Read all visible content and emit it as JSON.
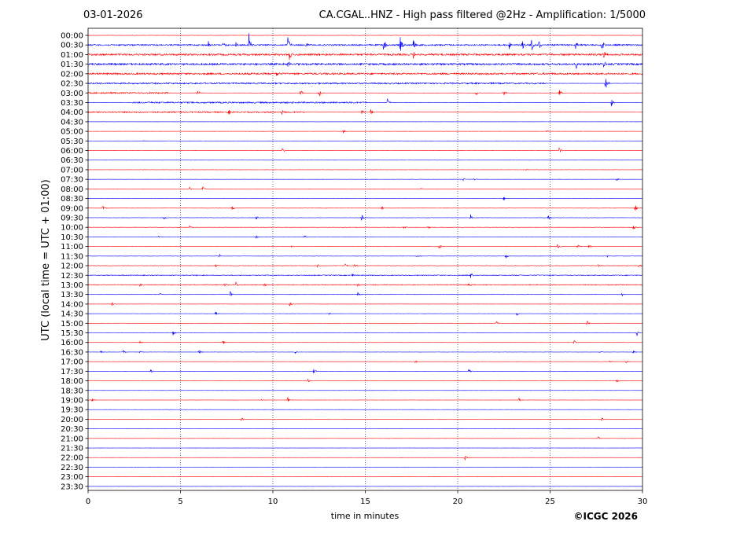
{
  "header": {
    "date": "03-01-2026",
    "title": "CA.CGAL..HNZ - High pass filtered @2Hz - Amplification: 1/5000"
  },
  "copyright": "©ICGC 2026",
  "colors": {
    "red_trace": "#ff0000",
    "blue_trace": "#0000ff",
    "grid": "#1a237e",
    "axis": "#000000"
  },
  "chart_data": {
    "type": "line",
    "title": "CA.CGAL..HNZ - High pass filtered @2Hz - Amplification: 1/5000",
    "xlabel": "time in minutes",
    "ylabel": "UTC (local time = UTC + 01:00)",
    "xlim": [
      0,
      30
    ],
    "x_ticks": [
      0,
      5,
      10,
      15,
      20,
      25,
      30
    ],
    "x_tick_labels": [
      "0",
      "5",
      "10",
      "15",
      "20",
      "25",
      "30"
    ],
    "y_tick_labels": [
      "00:00",
      "00:30",
      "01:00",
      "01:30",
      "02:00",
      "02:30",
      "03:00",
      "03:30",
      "04:00",
      "04:30",
      "05:00",
      "05:30",
      "06:00",
      "06:30",
      "07:00",
      "07:30",
      "08:00",
      "08:30",
      "09:00",
      "09:30",
      "10:00",
      "10:30",
      "11:00",
      "11:30",
      "12:00",
      "12:30",
      "13:00",
      "13:30",
      "14:00",
      "14:30",
      "15:00",
      "15:30",
      "16:00",
      "16:30",
      "17:00",
      "17:30",
      "18:00",
      "18:30",
      "19:00",
      "19:30",
      "20:00",
      "20:30",
      "21:00",
      "21:30",
      "22:00",
      "22:30",
      "23:00",
      "23:30"
    ],
    "vertical_grid_minutes": [
      5,
      10,
      15,
      20,
      25
    ],
    "grid": true,
    "series_color_pattern": [
      "red",
      "blue"
    ],
    "traces": [
      {
        "row": "00:00",
        "color": "red",
        "noise": 0.2,
        "band": null,
        "events": []
      },
      {
        "row": "00:30",
        "color": "blue",
        "noise": 0.9,
        "band": null,
        "events": [
          [
            6.5,
            2
          ],
          [
            7.3,
            1.5
          ],
          [
            8.0,
            1.5
          ],
          [
            8.7,
            5
          ],
          [
            10.8,
            4
          ],
          [
            11.8,
            1.5
          ],
          [
            16.0,
            3
          ],
          [
            16.9,
            4
          ],
          [
            17.6,
            3
          ],
          [
            22.8,
            2
          ],
          [
            23.5,
            2
          ],
          [
            24.0,
            3
          ],
          [
            24.4,
            2
          ],
          [
            26.4,
            3
          ],
          [
            27.8,
            3
          ]
        ]
      },
      {
        "row": "01:00",
        "color": "red",
        "noise": 1.1,
        "band": null,
        "events": [
          [
            10.9,
            3
          ],
          [
            17.6,
            2
          ],
          [
            27.9,
            2
          ]
        ]
      },
      {
        "row": "01:30",
        "color": "blue",
        "noise": 1.2,
        "band": null,
        "events": [
          [
            10.8,
            2
          ],
          [
            26.4,
            2
          ],
          [
            27.9,
            2
          ]
        ]
      },
      {
        "row": "02:00",
        "color": "red",
        "noise": 1.1,
        "band": null,
        "events": [
          [
            10.2,
            2
          ]
        ]
      },
      {
        "row": "02:30",
        "color": "blue",
        "noise": 0.9,
        "band": [
          0,
          24.8
        ],
        "events": [
          [
            28.0,
            3
          ]
        ]
      },
      {
        "row": "03:00",
        "color": "red",
        "noise": 0.9,
        "band": [
          0,
          4.3
        ],
        "events": [
          [
            5.9,
            2
          ],
          [
            11.5,
            1.5
          ],
          [
            12.5,
            2
          ],
          [
            21.0,
            1.5
          ],
          [
            22.5,
            1.5
          ],
          [
            25.5,
            1.5
          ]
        ]
      },
      {
        "row": "03:30",
        "color": "blue",
        "noise": 0.9,
        "band": [
          2.4,
          15.1
        ],
        "events": [
          [
            16.2,
            2
          ],
          [
            28.3,
            2
          ]
        ]
      },
      {
        "row": "04:00",
        "color": "red",
        "noise": 0.8,
        "band": [
          0,
          11.8
        ],
        "events": [
          [
            7.6,
            1.5
          ],
          [
            10.5,
            1.5
          ],
          [
            14.8,
            1.5
          ],
          [
            15.3,
            1.2
          ]
        ]
      },
      {
        "row": "04:30",
        "color": "blue",
        "noise": 0.1,
        "band": null,
        "events": []
      },
      {
        "row": "05:00",
        "color": "red",
        "noise": 0.1,
        "band": null,
        "events": [
          [
            13.8,
            0.8
          ],
          [
            24.8,
            0.6
          ]
        ]
      },
      {
        "row": "05:30",
        "color": "blue",
        "noise": 0.1,
        "band": null,
        "events": [
          [
            3.0,
            0.4
          ]
        ]
      },
      {
        "row": "06:00",
        "color": "red",
        "noise": 0.1,
        "band": null,
        "events": [
          [
            10.5,
            1.5
          ],
          [
            25.5,
            1.3
          ]
        ]
      },
      {
        "row": "06:30",
        "color": "blue",
        "noise": 0.1,
        "band": null,
        "events": []
      },
      {
        "row": "07:00",
        "color": "red",
        "noise": 0.1,
        "band": null,
        "events": [
          [
            23.7,
            0.4
          ]
        ]
      },
      {
        "row": "07:30",
        "color": "blue",
        "noise": 0.1,
        "band": null,
        "events": [
          [
            20.3,
            0.8
          ],
          [
            20.9,
            0.6
          ],
          [
            28.6,
            0.8
          ]
        ]
      },
      {
        "row": "08:00",
        "color": "red",
        "noise": 0.1,
        "band": null,
        "events": [
          [
            5.5,
            0.8
          ],
          [
            6.2,
            1.0
          ],
          [
            16.0,
            0.3
          ],
          [
            18.0,
            0.4
          ]
        ]
      },
      {
        "row": "08:30",
        "color": "blue",
        "noise": 0.1,
        "band": null,
        "events": [
          [
            22.5,
            0.9
          ]
        ]
      },
      {
        "row": "09:00",
        "color": "red",
        "noise": 0.2,
        "band": null,
        "events": [
          [
            0.8,
            1.0
          ],
          [
            7.8,
            1.0
          ],
          [
            15.9,
            0.8
          ],
          [
            29.6,
            1.6
          ]
        ]
      },
      {
        "row": "09:30",
        "color": "blue",
        "noise": 0.2,
        "band": null,
        "events": [
          [
            4.1,
            0.8
          ],
          [
            9.1,
            1.4
          ],
          [
            14.8,
            2.0
          ],
          [
            20.7,
            1.6
          ],
          [
            24.9,
            1.2
          ]
        ]
      },
      {
        "row": "10:00",
        "color": "red",
        "noise": 0.2,
        "band": null,
        "events": [
          [
            5.5,
            0.8
          ],
          [
            17.1,
            0.6
          ],
          [
            18.4,
            0.8
          ],
          [
            29.5,
            1.2
          ]
        ]
      },
      {
        "row": "10:30",
        "color": "blue",
        "noise": 0.1,
        "band": null,
        "events": [
          [
            3.8,
            0.4
          ],
          [
            9.1,
            0.8
          ],
          [
            11.7,
            1.4
          ]
        ]
      },
      {
        "row": "11:00",
        "color": "red",
        "noise": 0.2,
        "band": null,
        "events": [
          [
            11.0,
            0.4
          ],
          [
            19.0,
            1.2
          ],
          [
            25.4,
            1.2
          ],
          [
            26.5,
            0.9
          ],
          [
            27.1,
            1.3
          ]
        ]
      },
      {
        "row": "11:30",
        "color": "blue",
        "noise": 0.2,
        "band": null,
        "events": [
          [
            7.1,
            1.0
          ],
          [
            17.8,
            0.5
          ],
          [
            22.6,
            1.1
          ],
          [
            28.1,
            0.6
          ]
        ]
      },
      {
        "row": "12:00",
        "color": "red",
        "noise": 0.3,
        "band": null,
        "events": [
          [
            6.9,
            1.2
          ],
          [
            12.4,
            0.9
          ],
          [
            13.9,
            1.0
          ],
          [
            14.4,
            0.8
          ],
          [
            27.6,
            0.6
          ],
          [
            29.8,
            0.9
          ]
        ]
      },
      {
        "row": "12:30",
        "color": "blue",
        "noise": 0.5,
        "band": null,
        "events": [
          [
            14.3,
            0.9
          ],
          [
            20.7,
            1.3
          ]
        ]
      },
      {
        "row": "13:00",
        "color": "red",
        "noise": 0.5,
        "band": null,
        "events": [
          [
            2.8,
            0.9
          ],
          [
            7.4,
            0.8
          ],
          [
            8.0,
            1.2
          ],
          [
            9.5,
            1.1
          ],
          [
            14.6,
            0.8
          ],
          [
            20.6,
            0.8
          ]
        ]
      },
      {
        "row": "13:30",
        "color": "blue",
        "noise": 0.2,
        "band": null,
        "events": [
          [
            3.9,
            0.6
          ],
          [
            7.7,
            1.4
          ],
          [
            14.6,
            1.0
          ],
          [
            28.9,
            0.7
          ]
        ]
      },
      {
        "row": "14:00",
        "color": "red",
        "noise": 0.1,
        "band": null,
        "events": [
          [
            1.3,
            1.4
          ],
          [
            10.9,
            0.9
          ]
        ]
      },
      {
        "row": "14:30",
        "color": "blue",
        "noise": 0.1,
        "band": null,
        "events": [
          [
            6.9,
            1.0
          ],
          [
            13.0,
            0.9
          ],
          [
            23.2,
            1.0
          ]
        ]
      },
      {
        "row": "15:00",
        "color": "red",
        "noise": 0.1,
        "band": null,
        "events": [
          [
            22.1,
            0.9
          ],
          [
            27.0,
            1.4
          ]
        ]
      },
      {
        "row": "15:30",
        "color": "blue",
        "noise": 0.1,
        "band": null,
        "events": [
          [
            4.6,
            1.2
          ],
          [
            29.7,
            1.3
          ]
        ]
      },
      {
        "row": "16:00",
        "color": "red",
        "noise": 0.1,
        "band": null,
        "events": [
          [
            2.8,
            0.7
          ],
          [
            7.3,
            0.9
          ],
          [
            26.3,
            0.9
          ]
        ]
      },
      {
        "row": "16:30",
        "color": "blue",
        "noise": 0.1,
        "band": null,
        "events": [
          [
            0.7,
            0.7
          ],
          [
            1.9,
            0.8
          ],
          [
            2.8,
            0.7
          ],
          [
            6.0,
            1.3
          ],
          [
            11.2,
            0.6
          ],
          [
            27.7,
            0.9
          ],
          [
            29.5,
            0.8
          ]
        ]
      },
      {
        "row": "17:00",
        "color": "red",
        "noise": 0.1,
        "band": null,
        "events": [
          [
            17.7,
            1.0
          ],
          [
            28.2,
            0.8
          ],
          [
            29.1,
            0.7
          ]
        ]
      },
      {
        "row": "17:30",
        "color": "blue",
        "noise": 0.1,
        "band": null,
        "events": [
          [
            3.4,
            1.0
          ],
          [
            12.2,
            1.2
          ],
          [
            20.6,
            1.0
          ]
        ]
      },
      {
        "row": "18:00",
        "color": "red",
        "noise": 0.1,
        "band": null,
        "events": [
          [
            11.9,
            0.8
          ],
          [
            28.6,
            0.8
          ]
        ]
      },
      {
        "row": "18:30",
        "color": "blue",
        "noise": 0.1,
        "band": null,
        "events": []
      },
      {
        "row": "19:00",
        "color": "red",
        "noise": 0.1,
        "band": null,
        "events": [
          [
            0.2,
            0.9
          ],
          [
            9.4,
            0.8
          ],
          [
            10.8,
            1.3
          ],
          [
            23.3,
            1.0
          ]
        ]
      },
      {
        "row": "19:30",
        "color": "blue",
        "noise": 0.1,
        "band": null,
        "events": []
      },
      {
        "row": "20:00",
        "color": "red",
        "noise": 0.1,
        "band": null,
        "events": [
          [
            8.3,
            1.0
          ],
          [
            27.8,
            0.9
          ]
        ]
      },
      {
        "row": "20:30",
        "color": "blue",
        "noise": 0.1,
        "band": null,
        "events": []
      },
      {
        "row": "21:00",
        "color": "red",
        "noise": 0.1,
        "band": null,
        "events": [
          [
            27.6,
            0.8
          ]
        ]
      },
      {
        "row": "21:30",
        "color": "blue",
        "noise": 0.1,
        "band": null,
        "events": []
      },
      {
        "row": "22:00",
        "color": "red",
        "noise": 0.1,
        "band": null,
        "events": [
          [
            20.4,
            1.0
          ]
        ]
      },
      {
        "row": "22:30",
        "color": "blue",
        "noise": 0.1,
        "band": null,
        "events": []
      },
      {
        "row": "23:00",
        "color": "red",
        "noise": 0.1,
        "band": null,
        "events": []
      },
      {
        "row": "23:30",
        "color": "blue",
        "noise": 0.1,
        "band": null,
        "events": []
      }
    ]
  }
}
